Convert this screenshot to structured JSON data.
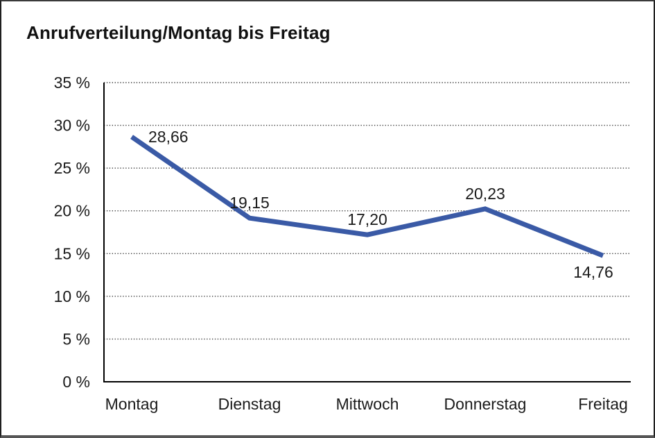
{
  "frame": {
    "background_color": "#ffffff",
    "border_color": "#1f1f1f",
    "bottom_border_color": "#565656"
  },
  "chart_data": {
    "type": "line",
    "title": "Anrufverteilung/Montag bis Freitag",
    "categories": [
      "Montag",
      "Dienstag",
      "Mittwoch",
      "Donnerstag",
      "Freitag"
    ],
    "series": [
      {
        "name": "Anrufverteilung",
        "values": [
          28.66,
          19.15,
          17.2,
          20.23,
          14.76
        ]
      }
    ],
    "data_labels": [
      "28,66",
      "19,15",
      "17,20",
      "20,23",
      "14,76"
    ],
    "label_placements": [
      "right",
      "above",
      "above",
      "above",
      "below"
    ],
    "xlabel": "",
    "ylabel": "",
    "ylim": [
      0,
      35
    ],
    "y_tick_step": 5,
    "y_ticks": [
      {
        "value": 35,
        "label": "35 %"
      },
      {
        "value": 30,
        "label": "30 %"
      },
      {
        "value": 25,
        "label": "25 %"
      },
      {
        "value": 20,
        "label": "20 %"
      },
      {
        "value": 15,
        "label": "15 %"
      },
      {
        "value": 10,
        "label": "10 %"
      },
      {
        "value": 5,
        "label": "5 %"
      },
      {
        "value": 0,
        "label": "0 %"
      }
    ],
    "grid": "horizontal-dotted",
    "legend_position": "none",
    "line_color": "#3A5AA6",
    "line_width": 7,
    "text_color": "#1a1a1a",
    "axis_color": "#000000",
    "gridline_color": "#333333"
  }
}
